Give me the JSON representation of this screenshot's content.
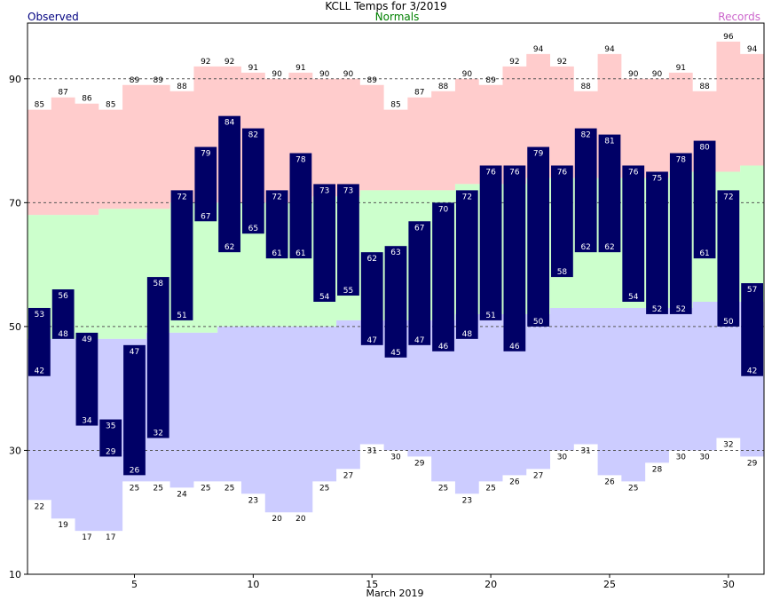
{
  "chart_data": {
    "type": "bar",
    "title": "KCLL Temps for 3/2019",
    "legend": {
      "observed": "Observed",
      "normals": "Normals",
      "records": "Records"
    },
    "xlabel": "March 2019",
    "xlim": [
      0.5,
      31.5
    ],
    "ylim": [
      10,
      99
    ],
    "x_ticks": [
      5,
      10,
      15,
      20,
      25,
      30
    ],
    "y_ticks": [
      10,
      30,
      50,
      70,
      90
    ],
    "grid": "dashed horizontal at 30, 50, 70, 90",
    "days": [
      1,
      2,
      3,
      4,
      5,
      6,
      7,
      8,
      9,
      10,
      11,
      12,
      13,
      14,
      15,
      16,
      17,
      18,
      19,
      20,
      21,
      22,
      23,
      24,
      25,
      26,
      27,
      28,
      29,
      30,
      31
    ],
    "observed_high": [
      53,
      56,
      49,
      35,
      47,
      58,
      72,
      79,
      84,
      82,
      72,
      78,
      73,
      73,
      62,
      63,
      67,
      70,
      72,
      76,
      76,
      79,
      76,
      82,
      81,
      76,
      75,
      78,
      80,
      72,
      57
    ],
    "observed_low": [
      42,
      48,
      34,
      29,
      26,
      32,
      51,
      67,
      62,
      65,
      61,
      61,
      54,
      55,
      47,
      45,
      47,
      46,
      48,
      51,
      46,
      50,
      58,
      62,
      62,
      54,
      52,
      52,
      61,
      50,
      42
    ],
    "normal_high": [
      68,
      68,
      68,
      69,
      69,
      69,
      70,
      70,
      70,
      70,
      70,
      70,
      71,
      71,
      72,
      72,
      72,
      72,
      73,
      73,
      73,
      74,
      74,
      74,
      74,
      74,
      74,
      75,
      75,
      75,
      76
    ],
    "normal_low": [
      48,
      48,
      48,
      48,
      48,
      49,
      49,
      49,
      50,
      50,
      50,
      50,
      50,
      51,
      51,
      51,
      51,
      51,
      52,
      52,
      52,
      52,
      53,
      53,
      53,
      53,
      53,
      53,
      54,
      54,
      54
    ],
    "record_high": [
      85,
      87,
      86,
      85,
      89,
      89,
      88,
      92,
      92,
      91,
      90,
      91,
      90,
      90,
      89,
      85,
      87,
      88,
      90,
      89,
      92,
      94,
      92,
      88,
      94,
      90,
      90,
      91,
      88,
      96,
      94
    ],
    "record_low": [
      22,
      19,
      17,
      17,
      25,
      25,
      24,
      25,
      25,
      23,
      20,
      20,
      25,
      27,
      31,
      30,
      29,
      25,
      23,
      25,
      26,
      27,
      30,
      31,
      26,
      25,
      28,
      30,
      30,
      32,
      29
    ],
    "colors": {
      "observed": "#000066",
      "normal_band": "#ccffcc",
      "record_high_band": "#ffcccc",
      "record_low_band": "#ccccff",
      "title_observed": "#000080",
      "title_normals": "#008000",
      "title_records": "#cc66cc"
    }
  }
}
